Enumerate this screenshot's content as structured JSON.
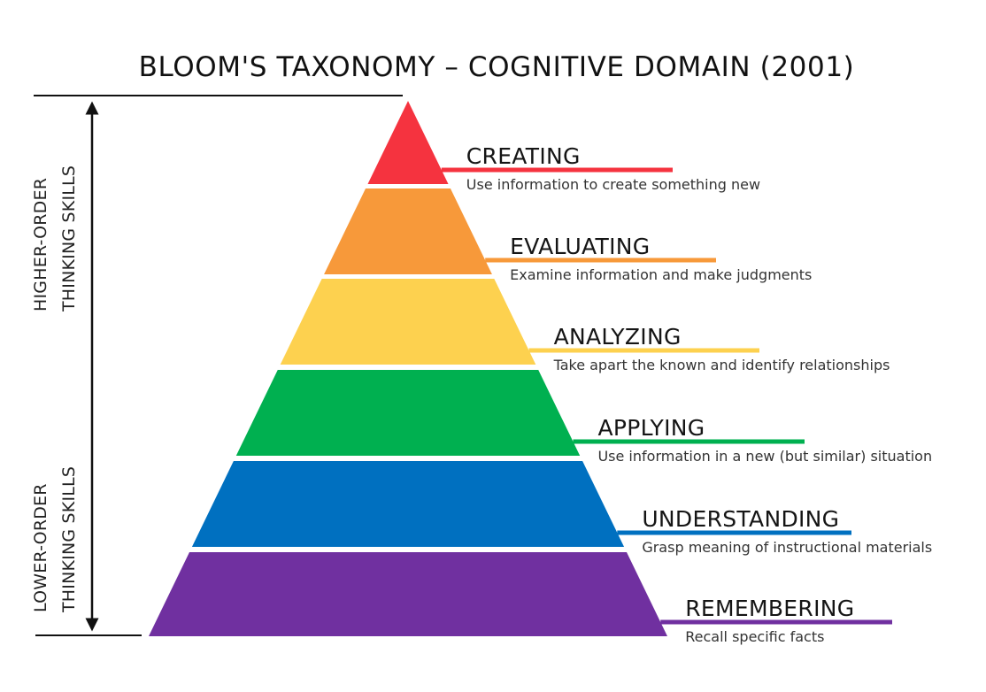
{
  "title": "BLOOM'S TAXONOMY – COGNITIVE DOMAIN (2001)",
  "side_labels": {
    "higher": [
      "HIGHER-ORDER",
      "THINKING SKILLS"
    ],
    "lower": [
      "LOWER-ORDER",
      "THINKING SKILLS"
    ]
  },
  "levels": [
    {
      "name": "CREATING",
      "description": "Use information to create something new",
      "color": "#F5333F"
    },
    {
      "name": "EVALUATING",
      "description": "Examine information and make judgments",
      "color": "#F7993A"
    },
    {
      "name": "ANALYZING",
      "description": "Take apart the known and identify relationships",
      "color": "#FDD14F"
    },
    {
      "name": "APPLYING",
      "description": "Use information in a new (but similar) situation",
      "color": "#00B050"
    },
    {
      "name": "UNDERSTANDING",
      "description": "Grasp meaning of instructional materials",
      "color": "#0070C0"
    },
    {
      "name": "REMEMBERING",
      "description": "Recall specific facts",
      "color": "#7030A0"
    }
  ]
}
